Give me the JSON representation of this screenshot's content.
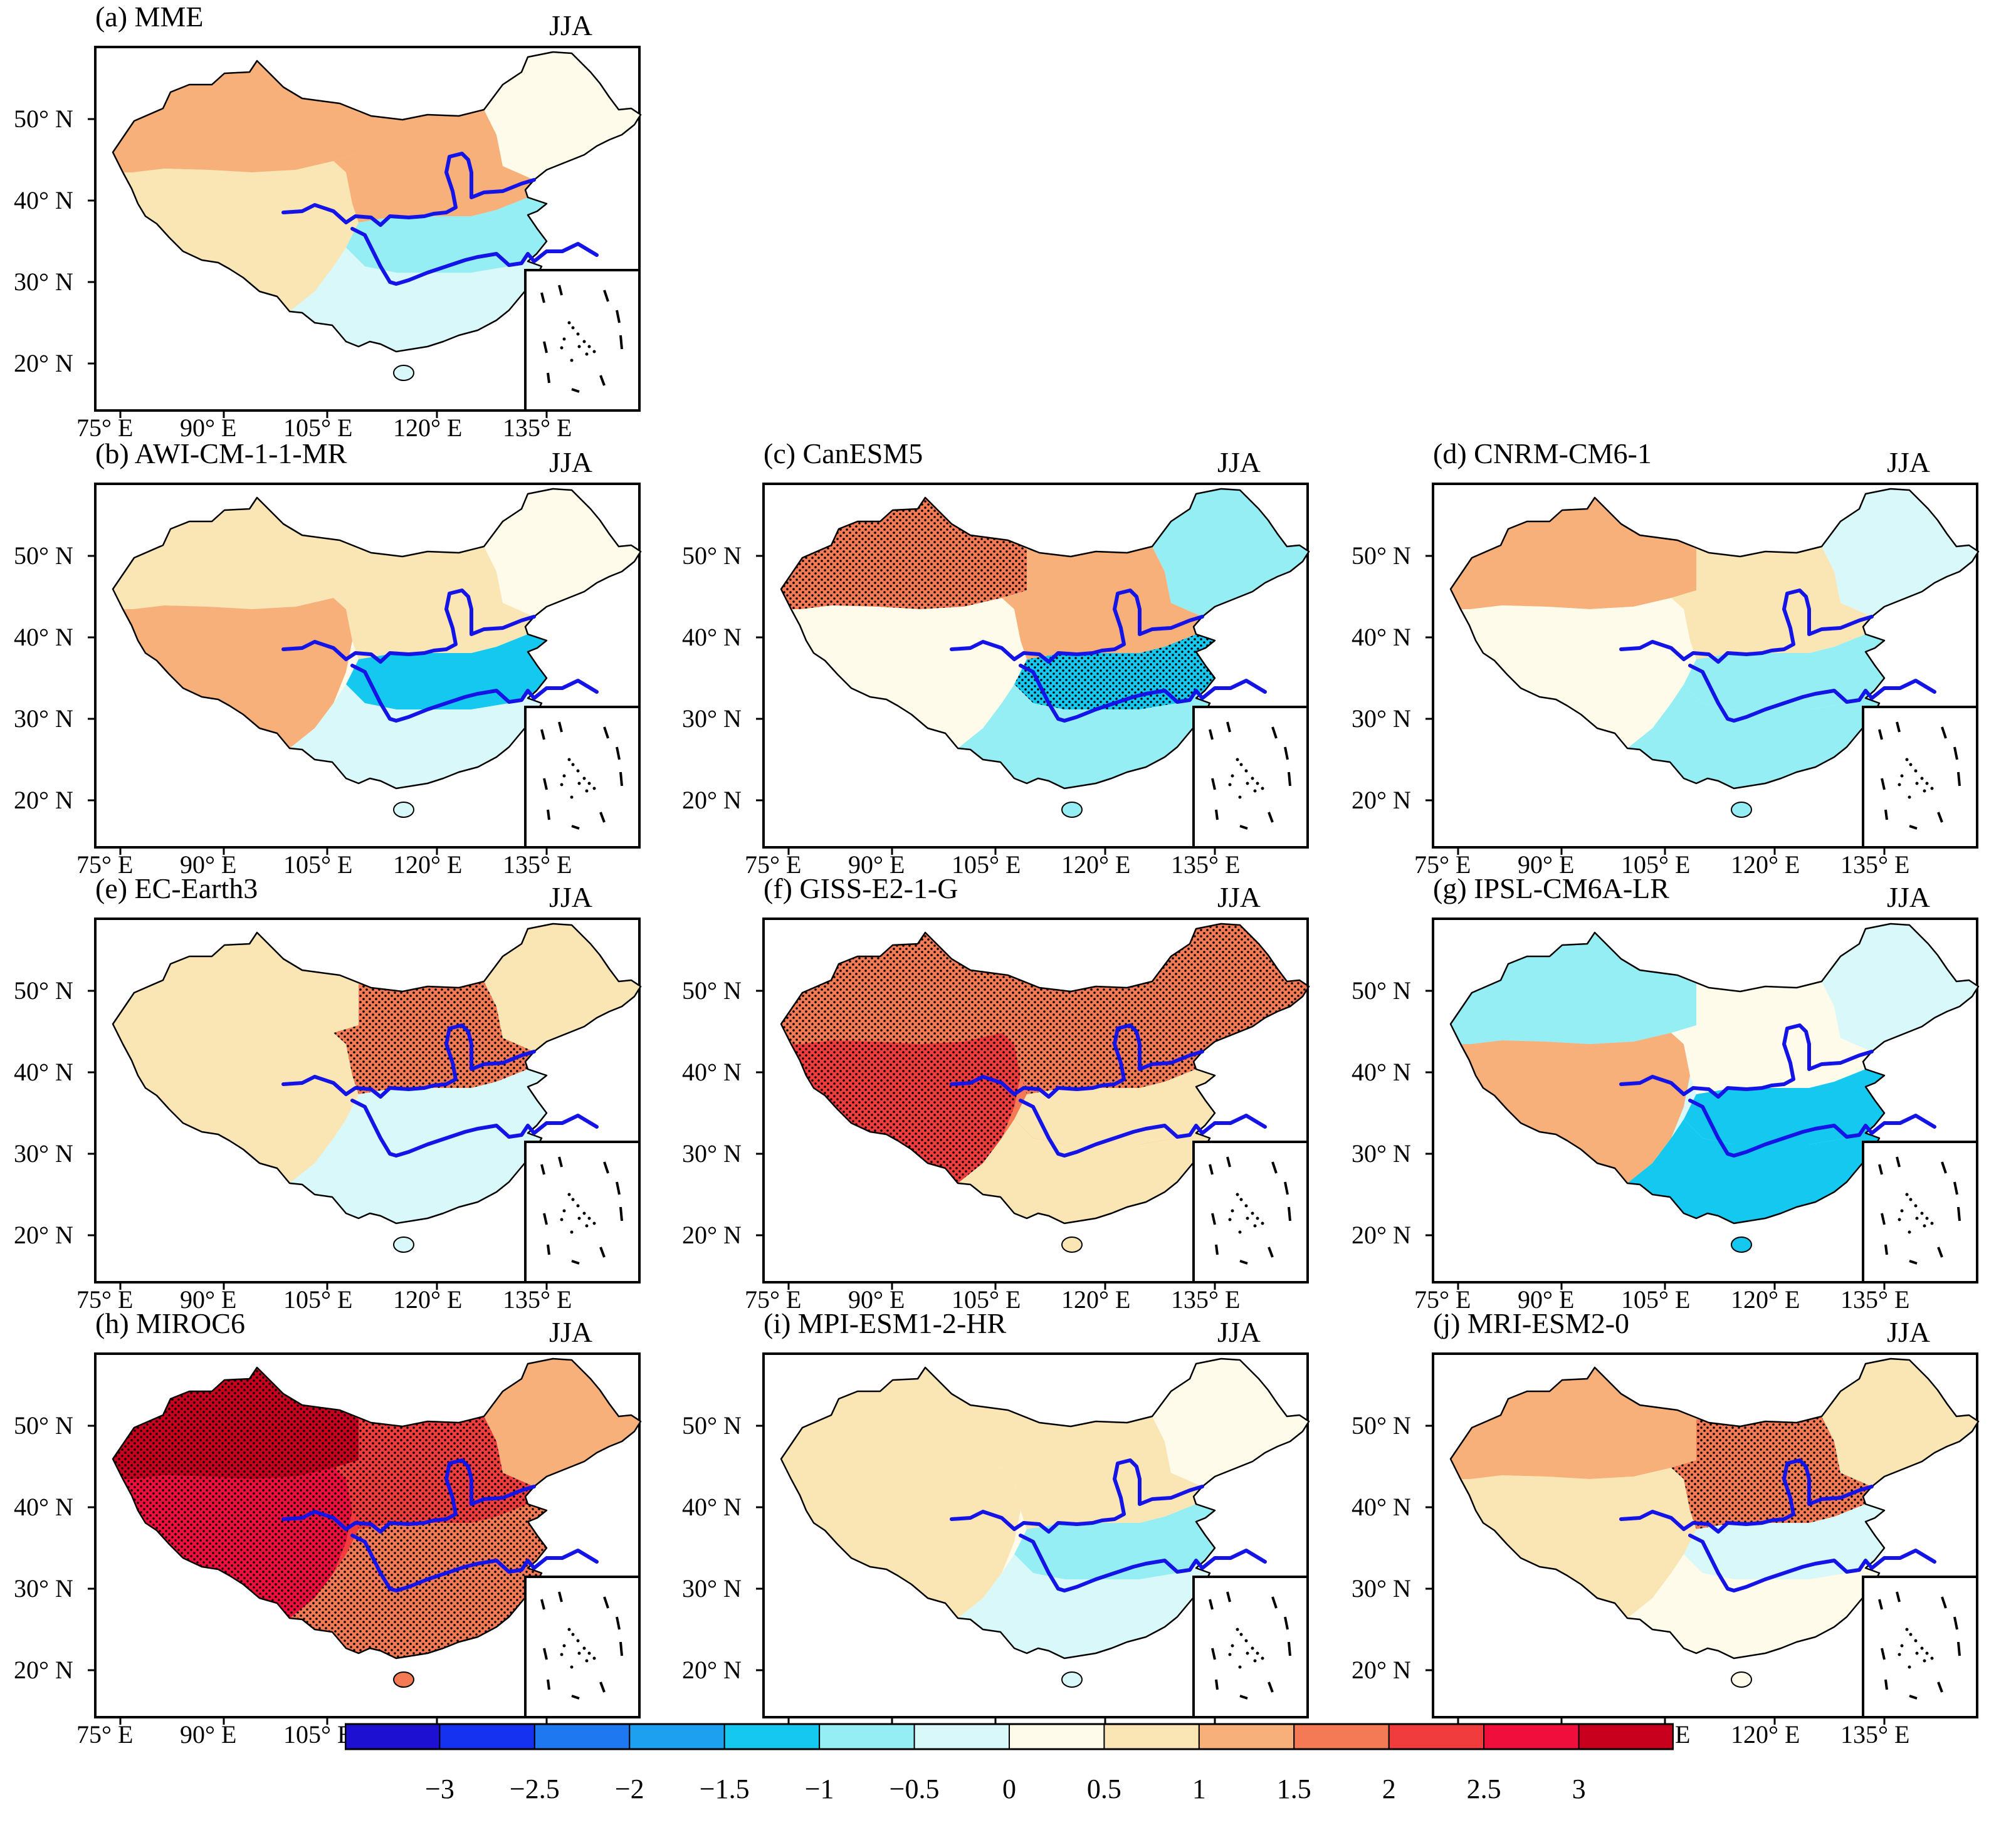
{
  "season": "JJA",
  "lat_labels": [
    "50° N",
    "40° N",
    "30° N",
    "20° N"
  ],
  "lon_labels": [
    "75° E",
    "90° E",
    "105° E",
    "120° E",
    "135° E"
  ],
  "panels": [
    {
      "id": "a",
      "title": "(a) MME",
      "season": "JJA",
      "overall": 0.5,
      "regions": {
        "northwest": 1.0,
        "tibet": 0.8,
        "north": 1.2,
        "northeast": 0.4,
        "south": -0.4,
        "yangtze": -0.6
      }
    },
    {
      "id": "b",
      "title": "(b) AWI-CM-1-1-MR",
      "season": "JJA",
      "overall": 0.4,
      "regions": {
        "northwest": 0.6,
        "tibet": 1.2,
        "north": 0.6,
        "northeast": 0.3,
        "south": -0.5,
        "yangtze": -1.3
      }
    },
    {
      "id": "c",
      "title": "(c) CanESM5",
      "season": "JJA",
      "overall": 0.2,
      "regions": {
        "northwest": 1.6,
        "tibet": 0.4,
        "north": 1.0,
        "northeast": -0.8,
        "south": -0.8,
        "yangtze": -1.5
      }
    },
    {
      "id": "d",
      "title": "(d) CNRM-CM6-1",
      "season": "JJA",
      "overall": 0.3,
      "regions": {
        "northwest": 1.4,
        "tibet": 0.4,
        "north": 0.8,
        "northeast": -0.4,
        "south": -0.6,
        "yangtze": -0.8
      }
    },
    {
      "id": "e",
      "title": "(e) EC-Earth3",
      "season": "JJA",
      "overall": 0.6,
      "regions": {
        "northwest": 0.6,
        "tibet": 0.8,
        "north": 1.8,
        "northeast": 0.8,
        "south": -0.3,
        "yangtze": -0.4
      }
    },
    {
      "id": "f",
      "title": "(f) GISS-E2-1-G",
      "season": "JJA",
      "overall": 1.6,
      "regions": {
        "northwest": 1.8,
        "tibet": 2.2,
        "north": 1.8,
        "northeast": 1.6,
        "south": 0.8,
        "yangtze": 0.6
      }
    },
    {
      "id": "g",
      "title": "(g) IPSL-CM6A-LR",
      "season": "JJA",
      "overall": -0.1,
      "regions": {
        "northwest": -0.6,
        "tibet": 1.2,
        "north": 0.4,
        "northeast": -0.4,
        "south": -1.4,
        "yangtze": -1.2
      }
    },
    {
      "id": "h",
      "title": "(h) MIROC6",
      "season": "JJA",
      "overall": 2.2,
      "regions": {
        "northwest": 3.0,
        "tibet": 2.8,
        "north": 2.0,
        "northeast": 1.4,
        "south": 1.6,
        "yangtze": 1.8
      }
    },
    {
      "id": "i",
      "title": "(i) MPI-ESM1-2-HR",
      "season": "JJA",
      "overall": 0.4,
      "regions": {
        "northwest": 0.6,
        "tibet": 0.8,
        "north": 0.6,
        "northeast": 0.4,
        "south": -0.4,
        "yangtze": -0.7
      }
    },
    {
      "id": "j",
      "title": "(j) MRI-ESM2-0",
      "season": "JJA",
      "overall": 0.9,
      "regions": {
        "northwest": 1.4,
        "tibet": 0.8,
        "north": 1.8,
        "northeast": 0.9,
        "south": 0.2,
        "yangtze": -0.2
      }
    }
  ],
  "colorbar": {
    "labels": [
      "−3",
      "−2.5",
      "−2",
      "−1.5",
      "−1",
      "−0.5",
      "0",
      "0.5",
      "1",
      "1.5",
      "2",
      "2.5",
      "3"
    ],
    "colors": [
      "#1e10d0",
      "#1432f0",
      "#1e78f0",
      "#1ea0f0",
      "#14c8f0",
      "#96eef5",
      "#d8f8fa",
      "#fffbea",
      "#fae6b4",
      "#f7b07a",
      "#f37a55",
      "#f03c3c",
      "#f00f3c",
      "#c8001e"
    ]
  }
}
